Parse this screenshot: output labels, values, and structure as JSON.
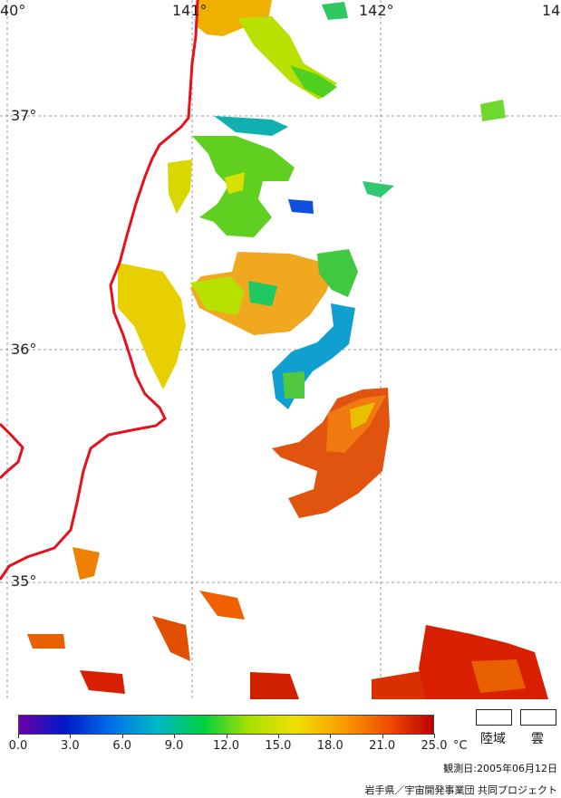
{
  "map": {
    "lon_labels": [
      "40°",
      "141°",
      "142°",
      "14"
    ],
    "lat_labels": [
      "37°",
      "36°",
      "35°"
    ],
    "colors": {
      "coast": "#e8101c",
      "grid": "#9a9a9a"
    }
  },
  "colorbar": {
    "ticks": [
      "0.0",
      "3.0",
      "6.0",
      "9.0",
      "12.0",
      "15.0",
      "18.0",
      "21.0",
      "25.0"
    ],
    "unit": "°C",
    "stops": [
      "#6a00a8",
      "#0018c8",
      "#0070e8",
      "#00b8c8",
      "#00d040",
      "#a8e000",
      "#f0e000",
      "#f8a000",
      "#f05000",
      "#c00000"
    ]
  },
  "legend": {
    "land_label": "陸域",
    "cloud_label": "雲"
  },
  "footer": {
    "observation_date": "観測日:2005年06月12日",
    "credit": "岩手県／宇宙開発事業団 共同プロジェクト"
  }
}
